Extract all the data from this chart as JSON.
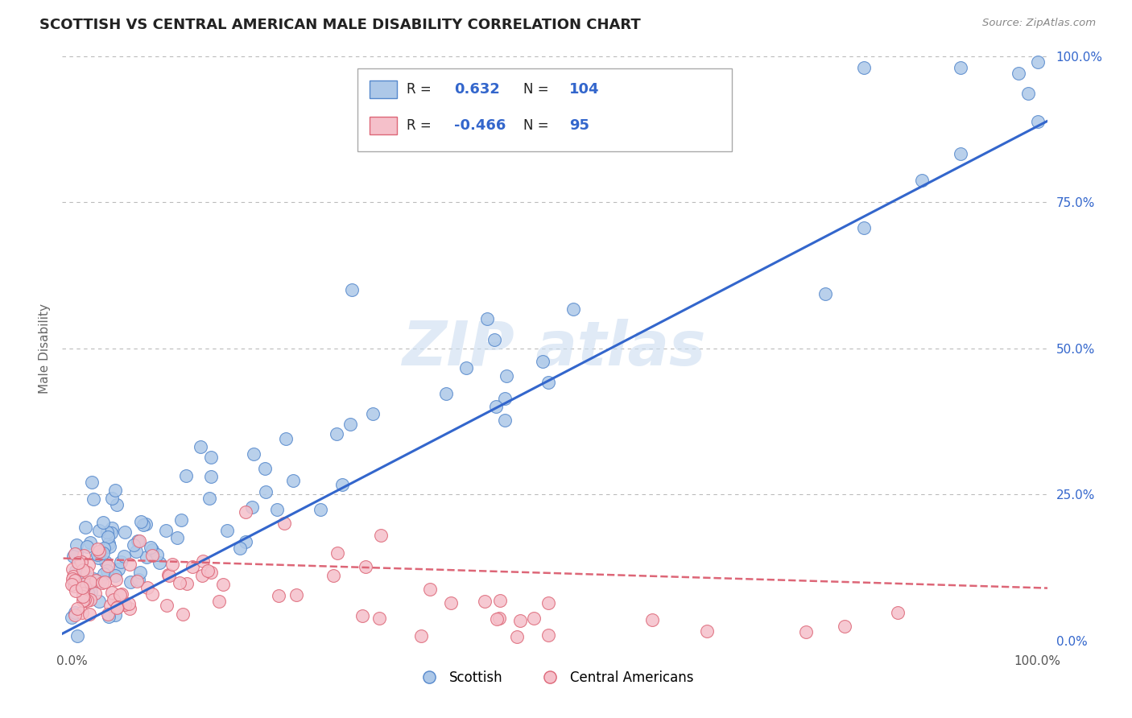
{
  "title": "SCOTTISH VS CENTRAL AMERICAN MALE DISABILITY CORRELATION CHART",
  "source": "Source: ZipAtlas.com",
  "ylabel": "Male Disability",
  "xlim": [
    0.0,
    1.0
  ],
  "ylim": [
    0.0,
    1.0
  ],
  "scottish_color": "#adc8e8",
  "scottish_edge": "#5588cc",
  "central_color": "#f5c0ca",
  "central_edge": "#dd6677",
  "line_blue": "#3366cc",
  "line_pink": "#dd6677",
  "r_scottish": "0.632",
  "n_scottish": "104",
  "r_central": "-0.466",
  "n_central": "95",
  "grid_color": "#bbbbbb",
  "background_color": "#ffffff",
  "text_dark": "#222222",
  "text_blue": "#3366cc",
  "watermark_color": "#ccddf0",
  "legend_border": "#aaaaaa",
  "ytick_color": "#3366cc",
  "xtick_color": "#555555"
}
